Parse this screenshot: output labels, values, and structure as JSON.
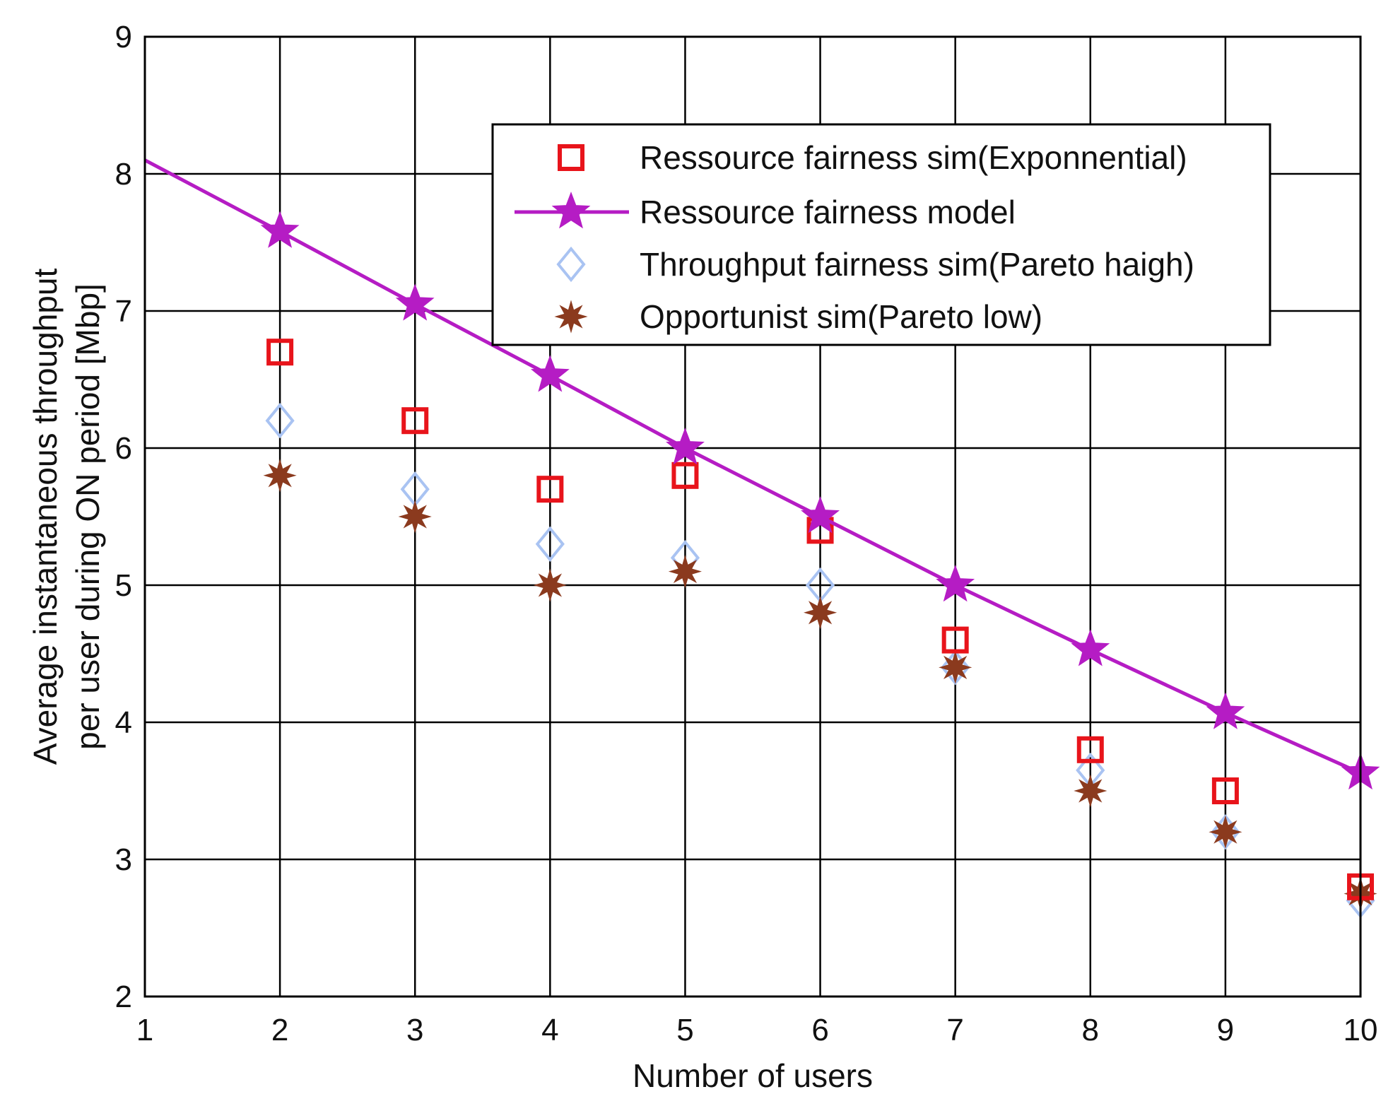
{
  "chart_data": {
    "type": "scatter",
    "xlabel": "Number of  users",
    "ylabel_lines": [
      "Average instantaneous throughput",
      "per user during ON period [Mbp]"
    ],
    "xlim": [
      1,
      10
    ],
    "ylim": [
      2,
      9
    ],
    "x_ticks": [
      1,
      2,
      3,
      4,
      5,
      6,
      7,
      8,
      9,
      10
    ],
    "y_ticks": [
      2,
      3,
      4,
      5,
      6,
      7,
      8,
      9
    ],
    "grid": true,
    "legend_position": "upper-right",
    "series": [
      {
        "name": "Ressource fairness sim(Exponnential)",
        "marker": "square",
        "line": false,
        "color": "#e8141b",
        "x": [
          2,
          3,
          4,
          5,
          6,
          7,
          8,
          9,
          10
        ],
        "y": [
          6.7,
          6.2,
          5.7,
          5.8,
          5.4,
          4.6,
          3.8,
          3.5,
          2.8
        ]
      },
      {
        "name": "Ressource fairness model",
        "marker": "star",
        "line": true,
        "color": "#b51cc4",
        "x": [
          1,
          2,
          3,
          4,
          5,
          6,
          7,
          8,
          9,
          10
        ],
        "y": [
          8.1,
          7.58,
          7.05,
          6.53,
          6.0,
          5.5,
          5.0,
          4.53,
          4.07,
          3.63
        ]
      },
      {
        "name": "Throughput  fairness sim(Pareto haigh)",
        "marker": "diamond",
        "line": false,
        "color": "#a9c3f2",
        "x": [
          2,
          3,
          4,
          5,
          6,
          7,
          8,
          9,
          10
        ],
        "y": [
          6.2,
          5.7,
          5.3,
          5.2,
          5.0,
          4.4,
          3.65,
          3.2,
          2.7
        ]
      },
      {
        "name": "Opportunist sim(Pareto low)",
        "marker": "splat",
        "line": false,
        "color": "#8b3a1e",
        "x": [
          2,
          3,
          4,
          5,
          6,
          7,
          8,
          9,
          10
        ],
        "y": [
          5.8,
          5.5,
          5.0,
          5.1,
          4.8,
          4.4,
          3.5,
          3.2,
          2.75
        ]
      }
    ]
  }
}
